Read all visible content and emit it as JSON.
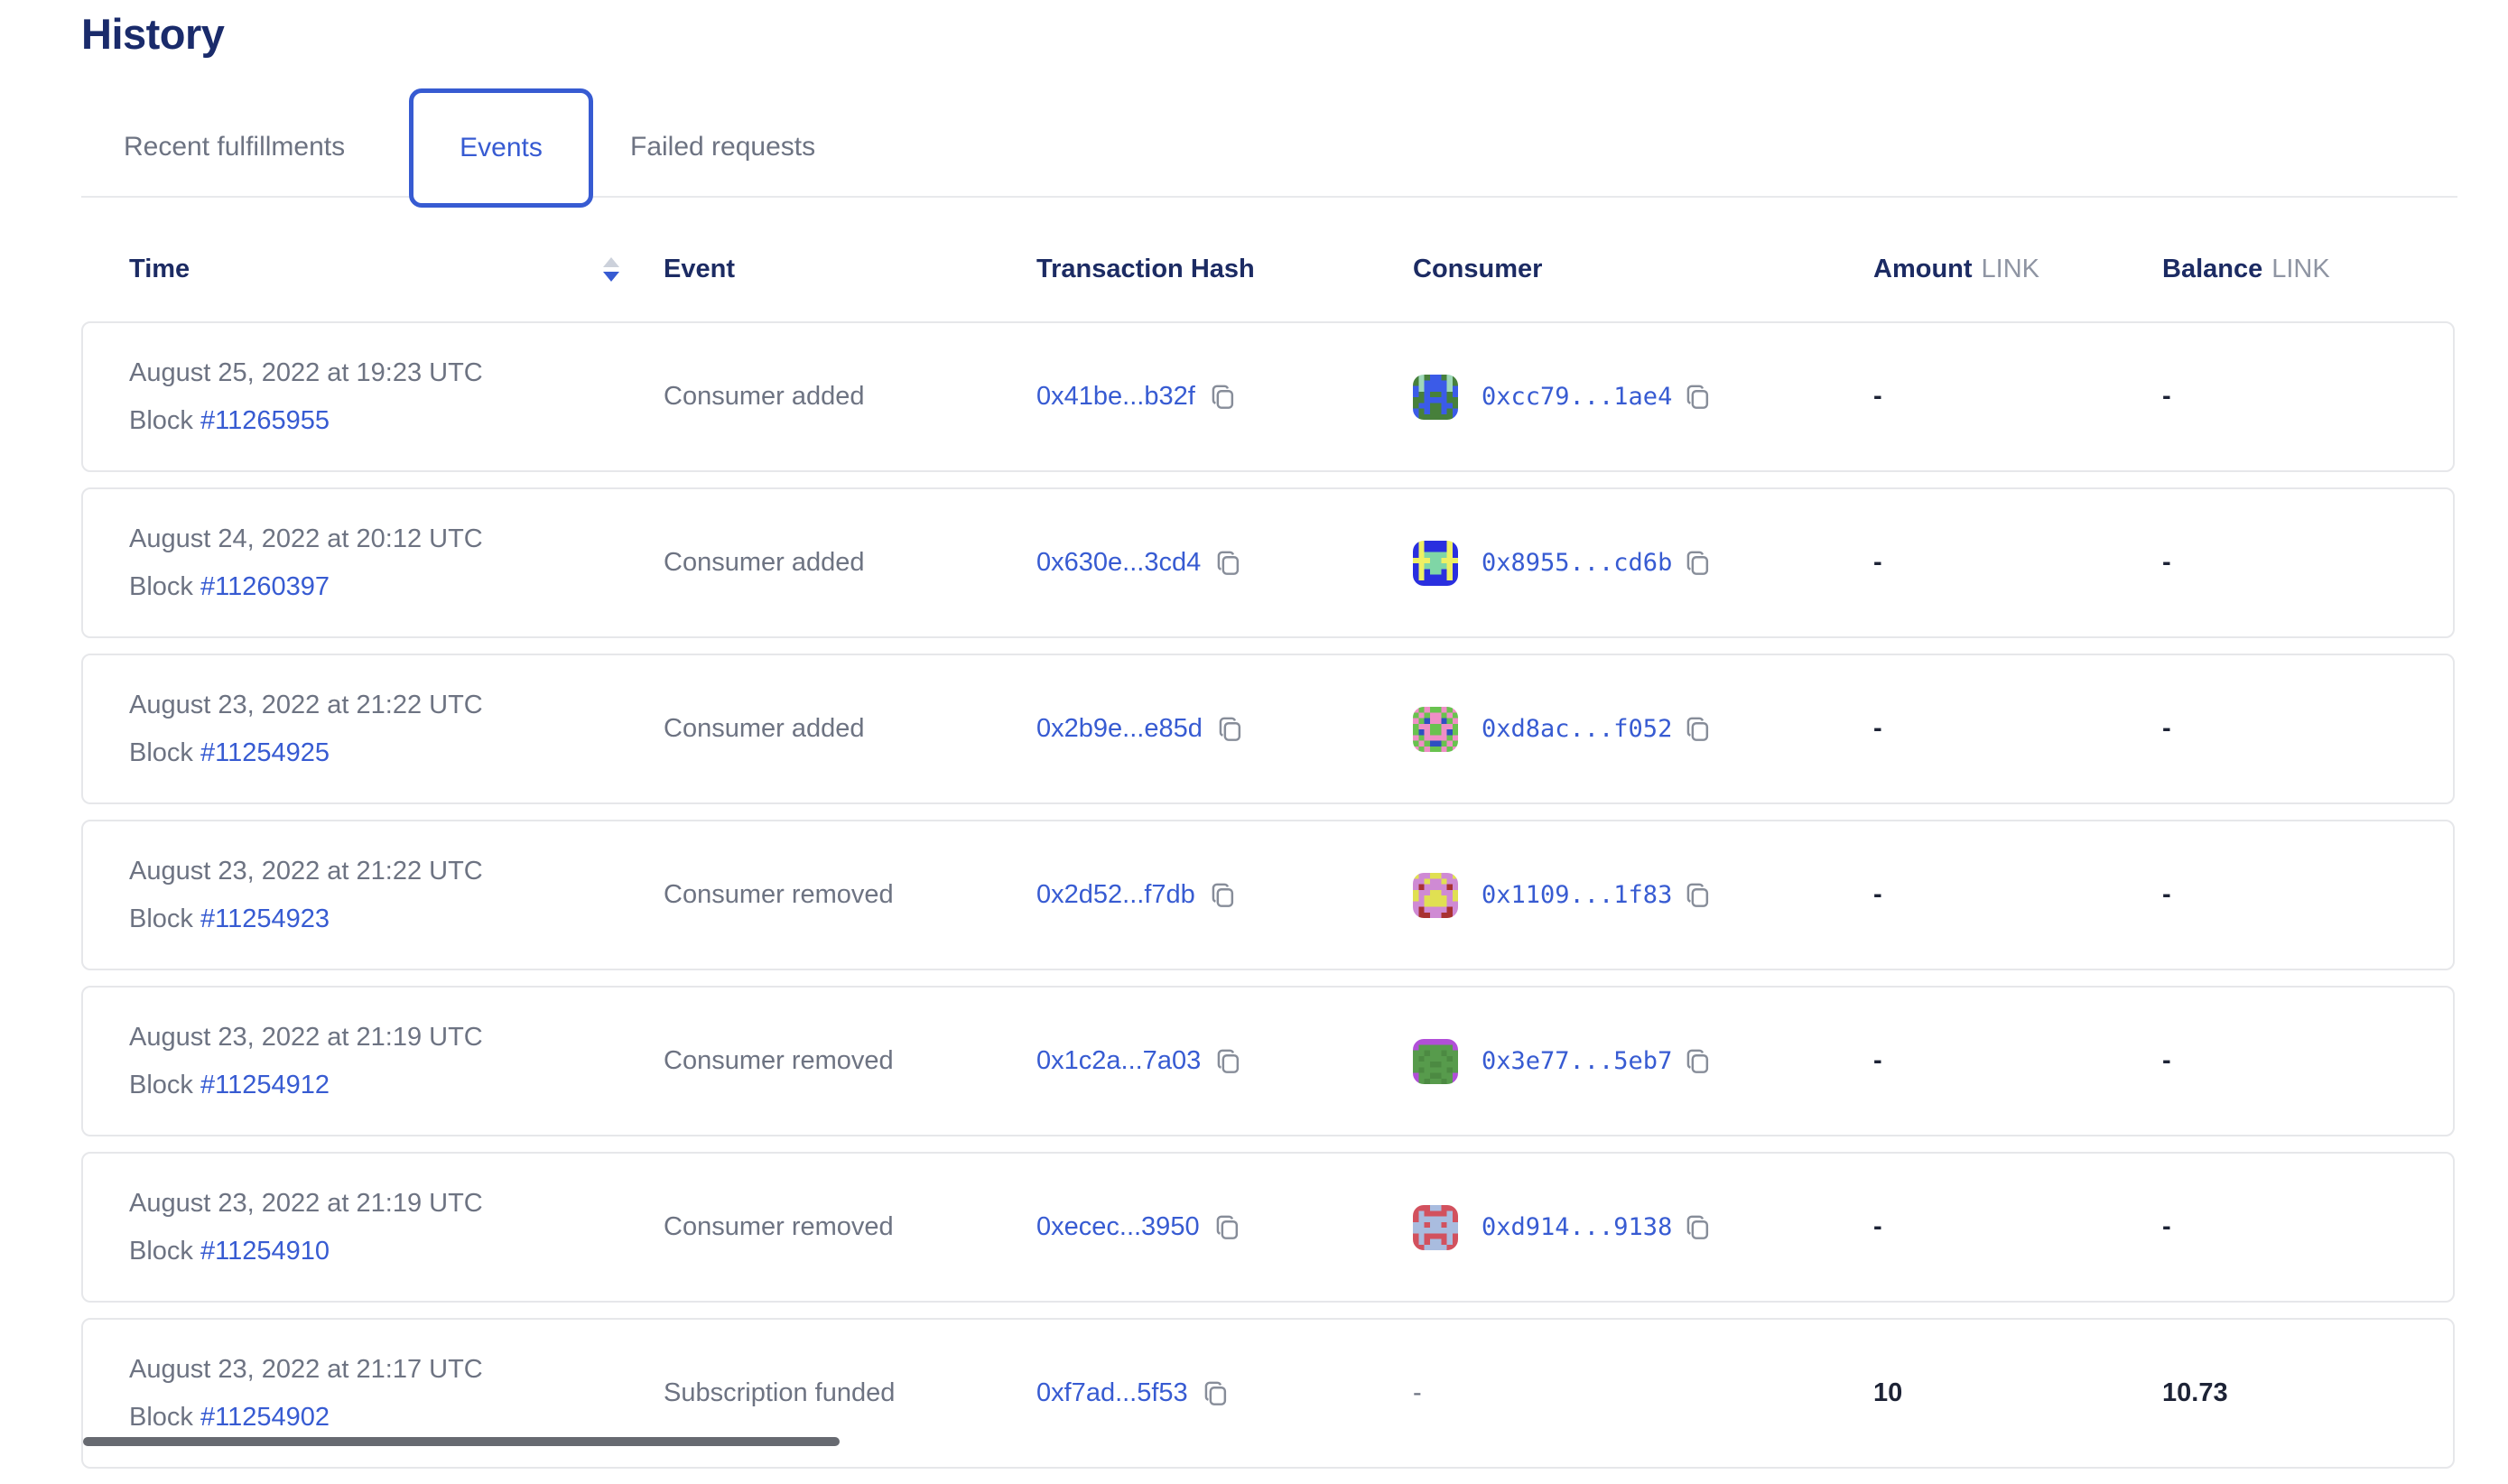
{
  "page": {
    "title": "History"
  },
  "tabs": [
    {
      "label": "Recent fulfillments",
      "active": false
    },
    {
      "label": "Events",
      "active": true
    },
    {
      "label": "Failed requests",
      "active": false
    }
  ],
  "table": {
    "columns": {
      "time": "Time",
      "event": "Event",
      "tx": "Transaction Hash",
      "consumer": "Consumer",
      "amount": "Amount",
      "balance": "Balance",
      "unit": "LINK"
    },
    "sort": {
      "column": "Time",
      "direction": "descending"
    },
    "block_prefix": "Block",
    "rows": [
      {
        "date": "August 25, 2022 at 19:23 UTC",
        "block": "#11265955",
        "event": "Consumer added",
        "tx": "0x41be...b32f",
        "consumer": "0xcc79...1ae4",
        "amount": "-",
        "balance": "-",
        "avatar": {
          "palette": {
            "G": "#47803b",
            "B": "#3b5be8",
            "T": "#9fd8b9"
          },
          "grid": [
            "GTGBBGTG",
            "GTBBBBTG",
            "BTBBBBTB",
            "BGBGGBGB",
            "GGBBBBGG",
            "GBBGGBBG",
            "BGBGGBGB",
            "BGGGGGGB"
          ]
        }
      },
      {
        "date": "August 24, 2022 at 20:12 UTC",
        "block": "#11260397",
        "event": "Consumer added",
        "tx": "0x630e...3cd4",
        "consumer": "0x8955...cd6b",
        "amount": "-",
        "balance": "-",
        "avatar": {
          "palette": {
            "B": "#2a2fdf",
            "Y": "#eef064",
            "T": "#7fd6a6"
          },
          "grid": [
            "BYBBBBYB",
            "BYBBBBYB",
            "BYTTTTYB",
            "YYYTTYYY",
            "BYTTTTYB",
            "BYBTTBYB",
            "BYBBBBYB",
            "BBBBBBBB"
          ]
        }
      },
      {
        "date": "August 23, 2022 at 21:22 UTC",
        "block": "#11254925",
        "event": "Consumer added",
        "tx": "0x2b9e...e85d",
        "consumer": "0xd8ac...f052",
        "amount": "-",
        "balance": "-",
        "avatar": {
          "palette": {
            "G": "#69c24f",
            "P": "#ef8ec6",
            "B": "#2e4fc2"
          },
          "grid": [
            "PGPGGPGP",
            "GPGPPGPG",
            "PGBPPBGP",
            "GPPGGPPG",
            "GBPGGPBG",
            "PGPPPPGP",
            "GPGBBGPG",
            "PGPGGPGP"
          ]
        }
      },
      {
        "date": "August 23, 2022 at 21:22 UTC",
        "block": "#11254923",
        "event": "Consumer removed",
        "tx": "0x2d52...f7db",
        "consumer": "0x1109...1f83",
        "amount": "-",
        "balance": "-",
        "avatar": {
          "palette": {
            "V": "#cf8ad4",
            "Y": "#e0e052",
            "R": "#a83232"
          },
          "grid": [
            "YVVYYVVY",
            "VVYVVYVV",
            "VRVVVVRV",
            "YVVYYVVY",
            "YVYYYYVY",
            "VVYYYYVV",
            "VRVVVVRV",
            "VRRVVRRV"
          ]
        }
      },
      {
        "date": "August 23, 2022 at 21:19 UTC",
        "block": "#11254912",
        "event": "Consumer removed",
        "tx": "0x1c2a...7a03",
        "consumer": "0x3e77...5eb7",
        "amount": "-",
        "balance": "-",
        "avatar": {
          "palette": {
            "G": "#579b4c",
            "D": "#4c8a42",
            "P": "#b14fd8"
          },
          "grid": [
            "PPPPPPPP",
            "PGGGGGGP",
            "GGDGGDGG",
            "GDGGGGDG",
            "GGGDDGGG",
            "GDGGGGDG",
            "PGGDDGGP",
            "PGDGGDGP"
          ]
        }
      },
      {
        "date": "August 23, 2022 at 21:19 UTC",
        "block": "#11254910",
        "event": "Consumer removed",
        "tx": "0xecec...3950",
        "consumer": "0xd914...9138",
        "amount": "-",
        "balance": "-",
        "avatar": {
          "palette": {
            "R": "#d2515e",
            "L": "#a9bcdf"
          },
          "grid": [
            "RRRLLRRR",
            "RLRRRRLR",
            "RLLLLLLR",
            "LLRLLRLL",
            "LLLLLLLL",
            "RLRRRRLR",
            "RLRLLRLR",
            "RRLLLLRR"
          ]
        }
      },
      {
        "date": "August 23, 2022 at 21:17 UTC",
        "block": "#11254902",
        "event": "Subscription funded",
        "tx": "0xf7ad...5f53",
        "consumer": "-",
        "amount": "10",
        "balance": "10.73",
        "avatar": null
      }
    ]
  },
  "colors": {
    "accent_blue": "#375bd2",
    "heading_navy": "#1a2b6b",
    "body_gray": "#6d7382",
    "unit_gray": "#8f95a3",
    "card_border": "#e6e7ea",
    "value_dark": "#1d2336"
  }
}
